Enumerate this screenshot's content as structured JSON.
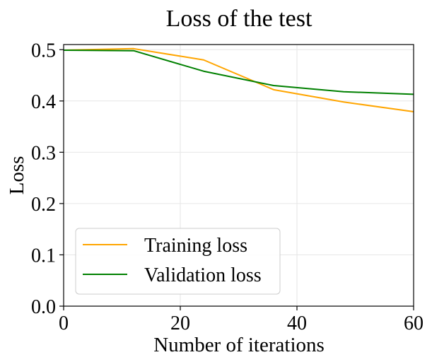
{
  "chart_data": {
    "type": "line",
    "title": "Loss of the test",
    "xlabel": "Number of iterations",
    "ylabel": "Loss",
    "xlim": [
      0,
      60
    ],
    "ylim": [
      0,
      0.51
    ],
    "xticks": [
      0,
      20,
      40,
      60
    ],
    "xtick_labels": [
      "0",
      "20",
      "40",
      "60"
    ],
    "yticks": [
      0.0,
      0.1,
      0.2,
      0.3,
      0.4,
      0.5
    ],
    "ytick_labels": [
      "0.0",
      "0.1",
      "0.2",
      "0.3",
      "0.4",
      "0.5"
    ],
    "grid": true,
    "legend_position": "lower-left",
    "x": [
      0,
      12,
      24,
      36,
      48,
      60
    ],
    "series": [
      {
        "name": "Training loss",
        "color": "#ffa500",
        "values": [
          0.499,
          0.502,
          0.48,
          0.422,
          0.398,
          0.379
        ]
      },
      {
        "name": "Validation loss",
        "color": "#008000",
        "values": [
          0.499,
          0.498,
          0.458,
          0.43,
          0.418,
          0.413
        ]
      }
    ]
  }
}
